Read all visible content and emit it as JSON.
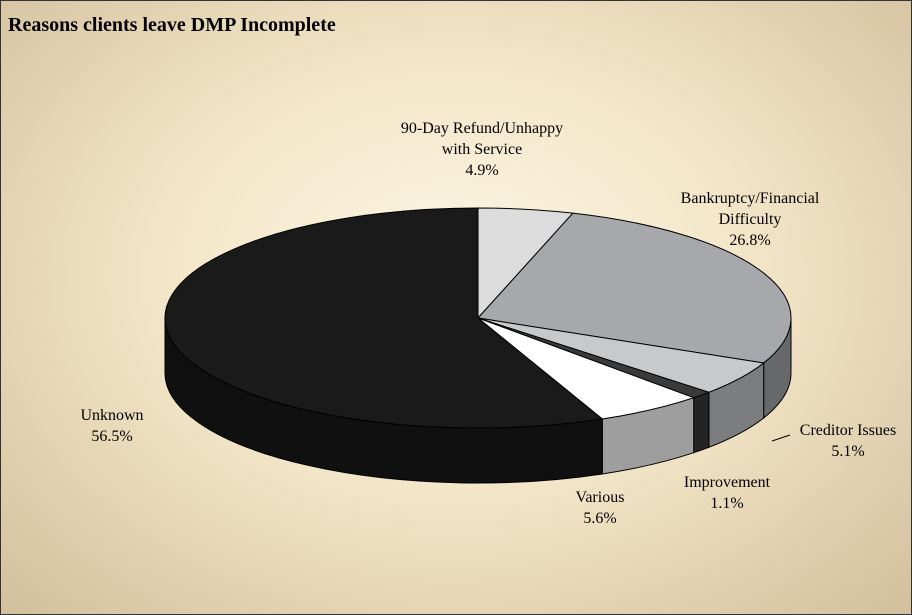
{
  "chart_data": {
    "type": "pie3d",
    "title": "Reasons clients leave DMP Incomplete",
    "categories": [
      "90-Day Refund/Unhappy with Service",
      "Bankruptcy/Financial Difficulty",
      "Creditor Issues",
      "Improvement",
      "Various",
      "Unknown"
    ],
    "values": [
      4.9,
      26.8,
      5.1,
      1.1,
      5.6,
      56.5
    ],
    "value_labels": [
      "4.9%",
      "26.8%",
      "5.1%",
      "1.1%",
      "5.6%",
      "56.5%"
    ],
    "colors": [
      "#dcdcdc",
      "#a6a8ab",
      "#c8c9cb",
      "#3a3a3a",
      "#ffffff",
      "#1a1a1a"
    ]
  }
}
